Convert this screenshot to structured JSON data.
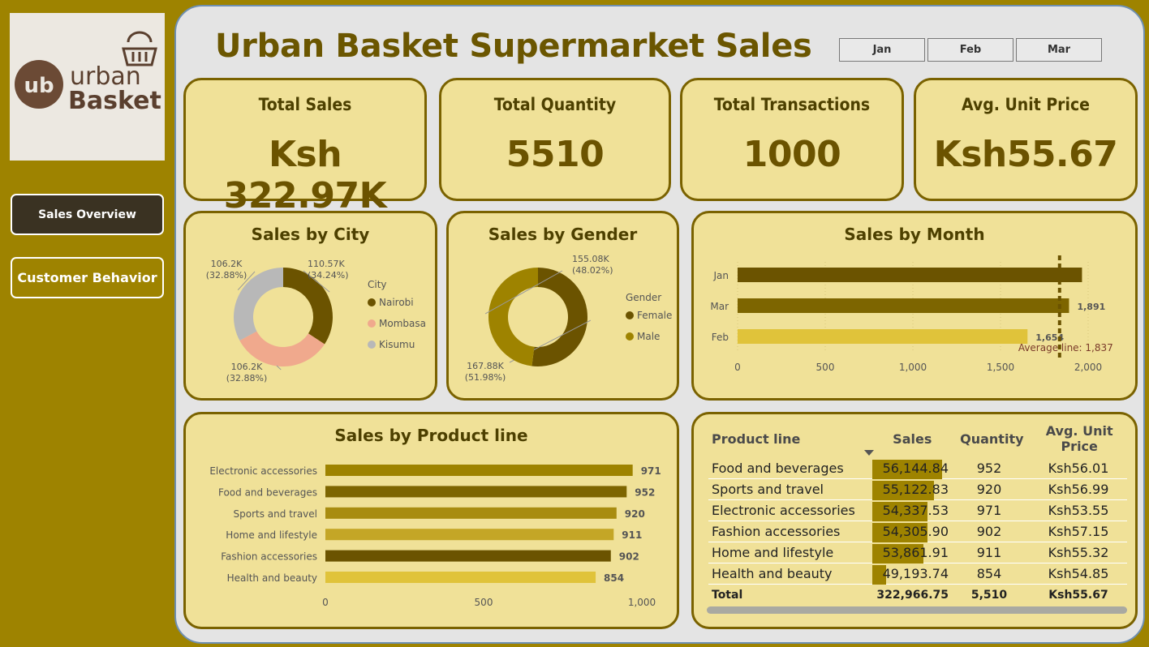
{
  "title": "Urban Basket Supermarket Sales",
  "logo": {
    "text_top": "urban",
    "text_bottom": "Basket",
    "monogram": "ub"
  },
  "nav": [
    {
      "label": "Sales Overview",
      "active": true
    },
    {
      "label": "Customer Behavior",
      "active": false
    }
  ],
  "slicer": [
    "Jan",
    "Feb",
    "Mar"
  ],
  "kpis": [
    {
      "label": "Total Sales",
      "value": "Ksh 322.97K"
    },
    {
      "label": "Total Quantity",
      "value": "5510"
    },
    {
      "label": "Total Transactions",
      "value": "1000"
    },
    {
      "label": "Avg. Unit Price",
      "value": "Ksh55.67"
    }
  ],
  "colors": {
    "dark": "#6b5300",
    "gold": "#9e8300",
    "yellow": "#e0c33a",
    "salmon": "#f0a98d",
    "grey": "#b8b8b8",
    "card_bg": "#f0e198"
  },
  "chart_data": [
    {
      "type": "pie",
      "title": "Sales by City",
      "legend_title": "City",
      "legend_position": "right",
      "slices": [
        {
          "name": "Nairobi",
          "value": 110.57,
          "label": "110.57K",
          "pct": "(34.24%)",
          "color": "#6b5300"
        },
        {
          "name": "Mombasa",
          "value": 106.2,
          "label": "106.2K",
          "pct": "(32.88%)",
          "color": "#f0a98d"
        },
        {
          "name": "Kisumu",
          "value": 106.2,
          "label": "106.2K",
          "pct": "(32.88%)",
          "color": "#b8b8b8"
        }
      ]
    },
    {
      "type": "pie",
      "title": "Sales by Gender",
      "legend_title": "Gender",
      "legend_position": "right",
      "slices": [
        {
          "name": "Female",
          "value": 167.88,
          "label": "167.88K",
          "pct": "(51.98%)",
          "color": "#6b5300"
        },
        {
          "name": "Male",
          "value": 155.08,
          "label": "155.08K",
          "pct": "(48.02%)",
          "color": "#9e8300"
        }
      ]
    },
    {
      "type": "bar",
      "orientation": "horizontal",
      "title": "Sales by Month",
      "categories": [
        "Jan",
        "Mar",
        "Feb"
      ],
      "values": [
        1965,
        1891,
        1654
      ],
      "data_labels": [
        "",
        "1,891",
        "1,654"
      ],
      "colors": [
        "#6b5300",
        "#7d6500",
        "#e0c33a"
      ],
      "xlim": [
        0,
        2000
      ],
      "xticks": [
        "0",
        "500",
        "1,000",
        "1,500",
        "2,000"
      ],
      "reference_line": {
        "value": 1837,
        "label": "Average line: 1,837"
      }
    },
    {
      "type": "bar",
      "orientation": "horizontal",
      "title": "Sales by Product line",
      "categories": [
        "Electronic accessories",
        "Food and beverages",
        "Sports and travel",
        "Home and lifestyle",
        "Fashion accessories",
        "Health and beauty"
      ],
      "values": [
        971,
        952,
        920,
        911,
        902,
        854
      ],
      "data_labels": [
        "971",
        "952",
        "920",
        "911",
        "902",
        "854"
      ],
      "colors": [
        "#9e8300",
        "#7d6500",
        "#a88c10",
        "#c4a626",
        "#6b5300",
        "#e0c33a"
      ],
      "xlim": [
        0,
        1000
      ],
      "xticks": [
        "0",
        "500",
        "1,000"
      ]
    },
    {
      "type": "table",
      "columns": [
        "Product line",
        "Sales",
        "Quantity",
        "Avg. Unit Price"
      ],
      "rows": [
        {
          "product": "Food and beverages",
          "sales": "56,144.84",
          "sales_value": 56144.84,
          "qty": "952",
          "price": "Ksh56.01"
        },
        {
          "product": "Sports and travel",
          "sales": "55,122.83",
          "sales_value": 55122.83,
          "qty": "920",
          "price": "Ksh56.99"
        },
        {
          "product": "Electronic accessories",
          "sales": "54,337.53",
          "sales_value": 54337.53,
          "qty": "971",
          "price": "Ksh53.55"
        },
        {
          "product": "Fashion accessories",
          "sales": "54,305.90",
          "sales_value": 54305.9,
          "qty": "902",
          "price": "Ksh57.15"
        },
        {
          "product": "Home and lifestyle",
          "sales": "53,861.91",
          "sales_value": 53861.91,
          "qty": "911",
          "price": "Ksh55.32"
        },
        {
          "product": "Health and beauty",
          "sales": "49,193.74",
          "sales_value": 49193.74,
          "qty": "854",
          "price": "Ksh54.85"
        }
      ],
      "total": {
        "label": "Total",
        "sales": "322,966.75",
        "qty": "5,510",
        "price": "Ksh55.67"
      }
    }
  ]
}
